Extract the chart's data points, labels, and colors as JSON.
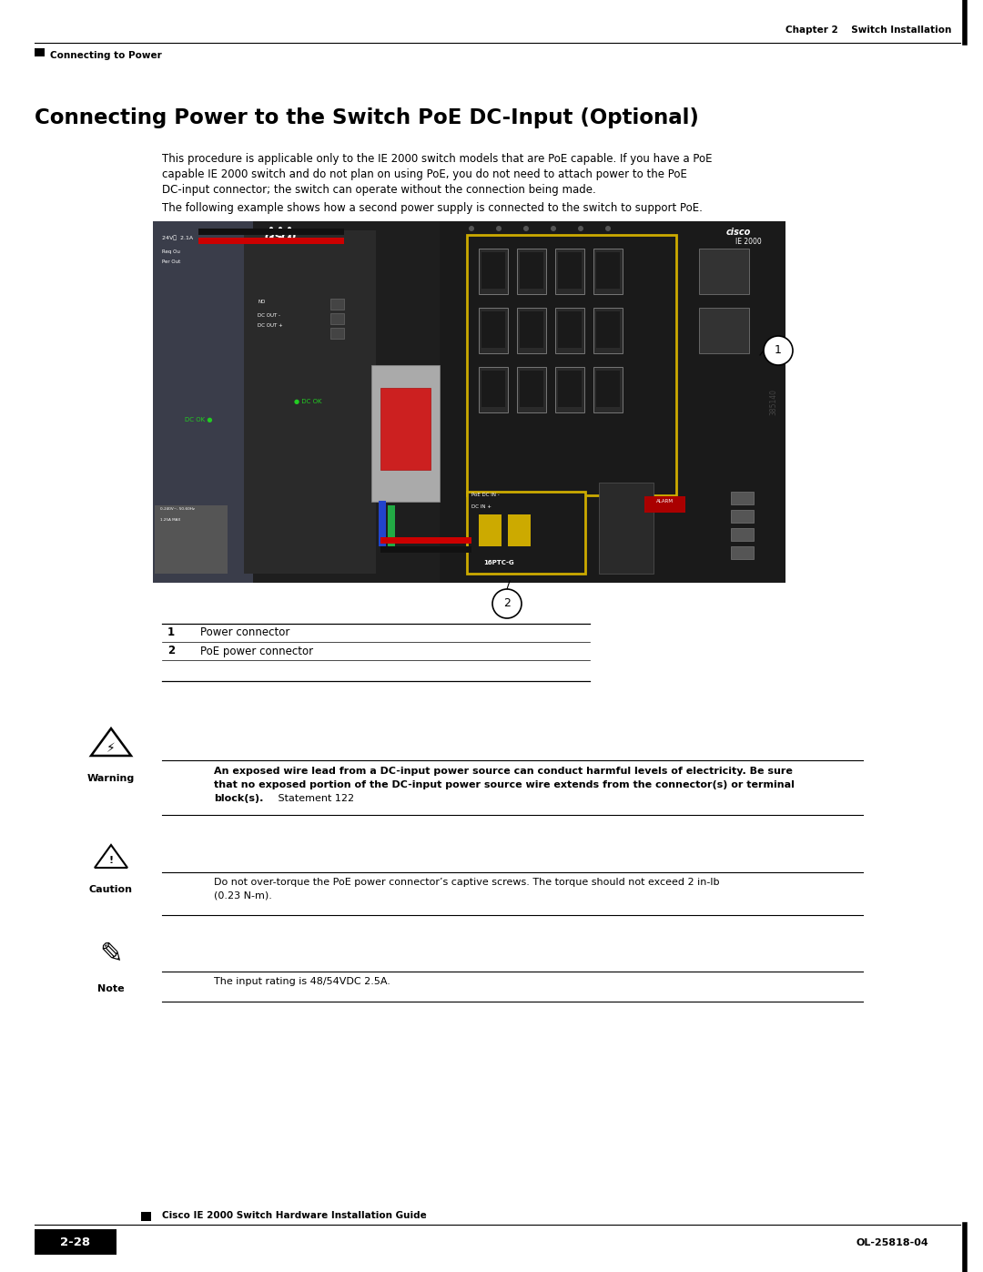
{
  "page_bg": "#ffffff",
  "chapter_text": "Chapter 2    Switch Installation",
  "section_label": "Connecting to Power",
  "title": "Connecting Power to the Switch PoE DC-Input (Optional)",
  "body_line1": "This procedure is applicable only to the IE 2000 switch models that are PoE capable. If you have a PoE",
  "body_line2": "capable IE 2000 switch and do not plan on using PoE, you do not need to attach power to the PoE",
  "body_line3": "DC-input connector; the switch can operate without the connection being made.",
  "body_line4": "The following example shows how a second power supply is connected to the switch to support PoE.",
  "row1_num": "1",
  "row1_text": "Power connector",
  "row2_num": "2",
  "row2_text": "PoE power connector",
  "warning_bold_line1": "An exposed wire lead from a DC-input power source can conduct harmful levels of electricity. Be sure",
  "warning_bold_line2": "that no exposed portion of the DC-input power source wire extends from the connector(s) or terminal",
  "warning_bold_end": "block(s).",
  "warning_normal": " Statement 122",
  "caution_text1": "Do not over-torque the PoE power connector’s captive screws. The torque should not exceed 2 in-lb",
  "caution_text2": "(0.23 N-m).",
  "note_text": "The input rating is 48/54VDC 2.5A.",
  "footer_guide_text": "Cisco IE 2000 Switch Hardware Installation Guide",
  "footer_page_label": "2-28",
  "footer_doc_num": "OL-25818-04",
  "fignum": "385140",
  "img_placeholder_color": "#888888"
}
